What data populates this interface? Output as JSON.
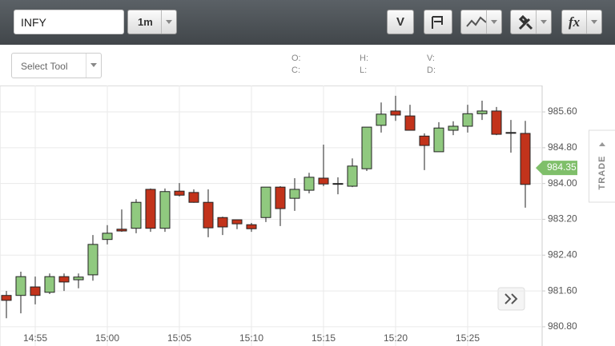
{
  "toolbar": {
    "symbol": "INFY",
    "interval": "1m",
    "buttons": [
      "V",
      "fx"
    ]
  },
  "subbar": {
    "tool_select": "Select Tool",
    "ohlc_labels": [
      "O:",
      "C:",
      "H:",
      "L:",
      "V:",
      "D:"
    ]
  },
  "side_tab": "TRADE",
  "chart_data": {
    "type": "candlestick",
    "categories": [
      null,
      null,
      "14:55",
      null,
      null,
      null,
      null,
      "15:00",
      null,
      null,
      null,
      null,
      "15:05",
      null,
      null,
      null,
      null,
      "15:10",
      null,
      null,
      null,
      null,
      "15:15",
      null,
      null,
      null,
      null,
      "15:20",
      null,
      null,
      null,
      null,
      "15:25",
      null,
      null,
      null,
      null
    ],
    "open": [
      981.5,
      981.5,
      981.69,
      981.57,
      981.92,
      981.85,
      981.96,
      982.75,
      982.98,
      983.0,
      983.87,
      983.0,
      983.83,
      983.8,
      983.58,
      983.24,
      983.19,
      983.08,
      983.24,
      983.92,
      983.67,
      983.85,
      984.12,
      984.0,
      983.94,
      984.33,
      985.3,
      985.62,
      985.51,
      985.06,
      984.71,
      985.19,
      985.28,
      985.56,
      985.62,
      985.14,
      985.12
    ],
    "high": [
      981.6,
      982.03,
      981.92,
      981.99,
      981.99,
      981.99,
      982.85,
      983.07,
      983.42,
      983.65,
      983.89,
      983.89,
      984.01,
      983.87,
      983.87,
      983.26,
      983.19,
      983.12,
      983.92,
      983.94,
      984.12,
      984.24,
      984.87,
      984.14,
      984.56,
      985.26,
      985.81,
      985.96,
      985.76,
      985.12,
      985.37,
      985.39,
      985.76,
      985.85,
      985.71,
      985.42,
      985.4
    ],
    "low": [
      980.99,
      981.1,
      981.3,
      981.53,
      981.6,
      981.66,
      981.83,
      982.64,
      982.92,
      982.89,
      982.92,
      982.92,
      983.71,
      983.57,
      982.8,
      982.85,
      982.98,
      982.92,
      983.14,
      983.05,
      983.39,
      983.78,
      983.94,
      983.76,
      983.92,
      984.28,
      985.14,
      985.4,
      985.19,
      984.3,
      984.71,
      985.08,
      985.14,
      985.42,
      985.08,
      984.69,
      983.46
    ],
    "close": [
      981.39,
      981.92,
      981.5,
      981.92,
      981.8,
      981.91,
      982.64,
      982.89,
      982.94,
      983.58,
      983.0,
      983.82,
      983.74,
      983.58,
      983.01,
      983.03,
      983.1,
      982.99,
      983.92,
      983.44,
      983.87,
      984.14,
      983.99,
      984.0,
      984.39,
      985.26,
      985.55,
      985.53,
      985.19,
      984.85,
      985.24,
      985.28,
      985.56,
      985.62,
      985.1,
      985.14,
      983.98
    ],
    "up_color": "#90c97f",
    "down_color": "#c2331b",
    "ylim": [
      980.37,
      986.19
    ],
    "yticks": [
      {
        "value": 980.8,
        "label": "980.80"
      },
      {
        "value": 981.6,
        "label": "981.60"
      },
      {
        "value": 982.4,
        "label": "982.40"
      },
      {
        "value": 983.2,
        "label": "983.20"
      },
      {
        "value": 984.0,
        "label": "984.00"
      },
      {
        "value": 984.8,
        "label": "984.80"
      },
      {
        "value": 985.6,
        "label": "985.60"
      }
    ],
    "last_price": 984.35,
    "last_price_color": "#7fbf6a",
    "grid": true
  }
}
